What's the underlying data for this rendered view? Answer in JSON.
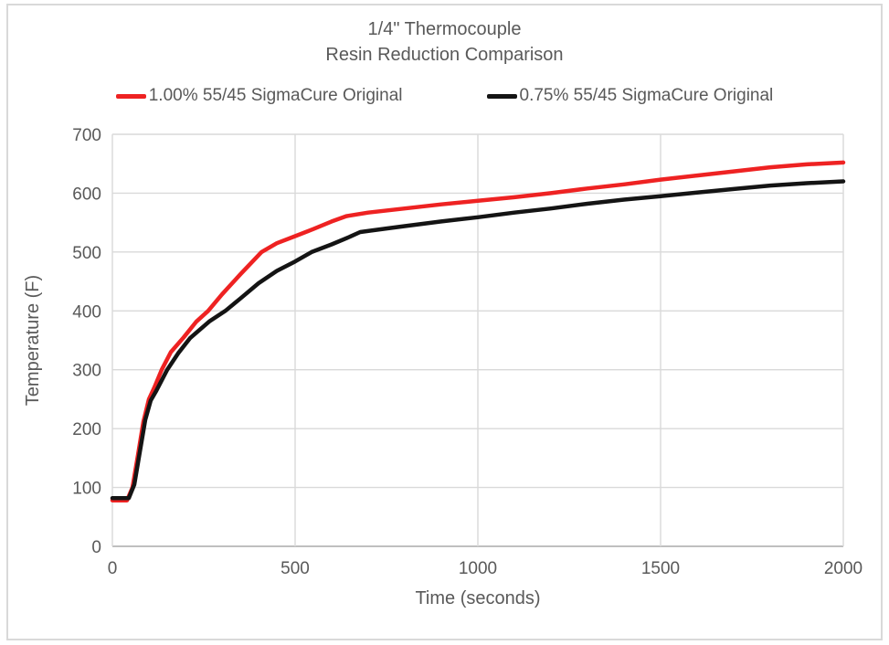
{
  "title": {
    "line1": "1/4\" Thermocouple",
    "line2": "Resin Reduction Comparison"
  },
  "legend": {
    "items": [
      {
        "label": "1.00% 55/45 SigmaCure Original",
        "color": "#ee2222"
      },
      {
        "label": "0.75% 55/45 SigmaCure Original",
        "color": "#141414"
      }
    ]
  },
  "colors": {
    "background": "#ffffff",
    "figure_border": "#d9d9d9",
    "gridline": "#d9d9d9",
    "axis_line": "#bfbfbf",
    "text": "#595959",
    "series_red": "#ee2222",
    "series_black": "#141414"
  },
  "chart_data": {
    "type": "line",
    "title": "1/4\" Thermocouple — Resin Reduction Comparison",
    "xlabel": "Time (seconds)",
    "ylabel": "Temperature (F)",
    "xlim": [
      0,
      2000
    ],
    "ylim": [
      0,
      700
    ],
    "x_ticks": [
      0,
      500,
      1000,
      1500,
      2000
    ],
    "y_ticks": [
      0,
      100,
      200,
      300,
      400,
      500,
      600,
      700
    ],
    "grid": true,
    "legend_position": "top",
    "series": [
      {
        "name": "1.00% 55/45 SigmaCure Original",
        "color": "#ee2222",
        "points": [
          [
            0,
            78
          ],
          [
            40,
            78
          ],
          [
            55,
            100
          ],
          [
            70,
            155
          ],
          [
            85,
            212
          ],
          [
            100,
            250
          ],
          [
            115,
            270
          ],
          [
            135,
            300
          ],
          [
            160,
            330
          ],
          [
            195,
            355
          ],
          [
            230,
            382
          ],
          [
            262,
            400
          ],
          [
            300,
            428
          ],
          [
            350,
            462
          ],
          [
            408,
            500
          ],
          [
            450,
            515
          ],
          [
            500,
            527
          ],
          [
            550,
            539
          ],
          [
            600,
            552
          ],
          [
            640,
            561
          ],
          [
            700,
            567
          ],
          [
            800,
            574
          ],
          [
            900,
            581
          ],
          [
            1000,
            587
          ],
          [
            1100,
            593
          ],
          [
            1200,
            600
          ],
          [
            1300,
            608
          ],
          [
            1400,
            615
          ],
          [
            1500,
            623
          ],
          [
            1600,
            630
          ],
          [
            1700,
            637
          ],
          [
            1800,
            644
          ],
          [
            1900,
            649
          ],
          [
            2000,
            652
          ]
        ]
      },
      {
        "name": "0.75% 55/45 SigmaCure Original",
        "color": "#141414",
        "points": [
          [
            0,
            82
          ],
          [
            45,
            82
          ],
          [
            60,
            105
          ],
          [
            75,
            160
          ],
          [
            90,
            215
          ],
          [
            105,
            248
          ],
          [
            120,
            264
          ],
          [
            150,
            300
          ],
          [
            180,
            328
          ],
          [
            213,
            354
          ],
          [
            265,
            382
          ],
          [
            309,
            400
          ],
          [
            350,
            421
          ],
          [
            400,
            447
          ],
          [
            450,
            468
          ],
          [
            500,
            484
          ],
          [
            545,
            500
          ],
          [
            600,
            513
          ],
          [
            650,
            526
          ],
          [
            678,
            534
          ],
          [
            750,
            540
          ],
          [
            800,
            544
          ],
          [
            900,
            552
          ],
          [
            1000,
            559
          ],
          [
            1100,
            567
          ],
          [
            1200,
            574
          ],
          [
            1300,
            582
          ],
          [
            1400,
            589
          ],
          [
            1500,
            595
          ],
          [
            1600,
            601
          ],
          [
            1700,
            607
          ],
          [
            1800,
            613
          ],
          [
            1900,
            617
          ],
          [
            2000,
            620
          ]
        ]
      }
    ]
  }
}
